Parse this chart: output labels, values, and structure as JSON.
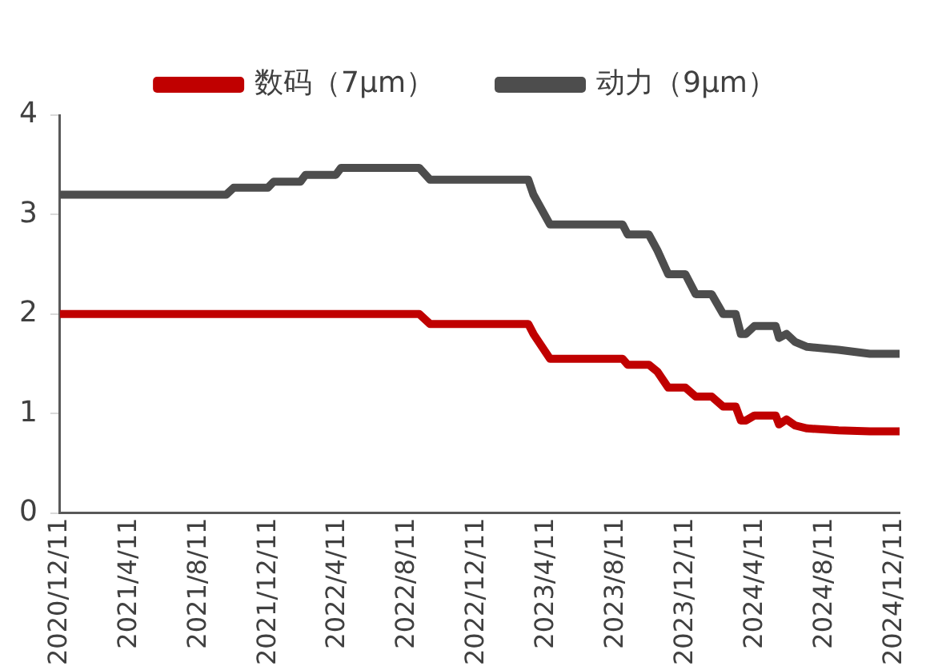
{
  "chart_data": {
    "type": "line",
    "legend": "top",
    "grid": false,
    "marker": "none",
    "line_style": "solid",
    "xlim": [
      "2020-12-11",
      "2024-12-20"
    ],
    "xticks": [
      {
        "value": "2020-12-11",
        "label": "2020/12/11"
      },
      {
        "value": "2021-04-11",
        "label": "2021/4/11"
      },
      {
        "value": "2021-08-11",
        "label": "2021/8/11"
      },
      {
        "value": "2021-12-11",
        "label": "2021/12/11"
      },
      {
        "value": "2022-04-11",
        "label": "2022/4/11"
      },
      {
        "value": "2022-08-11",
        "label": "2022/8/11"
      },
      {
        "value": "2022-12-11",
        "label": "2022/12/11"
      },
      {
        "value": "2023-04-11",
        "label": "2023/4/11"
      },
      {
        "value": "2023-08-11",
        "label": "2023/8/11"
      },
      {
        "value": "2023-12-11",
        "label": "2023/12/11"
      },
      {
        "value": "2024-04-11",
        "label": "2024/4/11"
      },
      {
        "value": "2024-08-11",
        "label": "2024/8/11"
      },
      {
        "value": "2024-12-11",
        "label": "2024/12/11"
      }
    ],
    "ylim": [
      0,
      4
    ],
    "yticks": [
      0,
      1,
      2,
      3,
      4
    ],
    "series": [
      {
        "name": "数码（7μm）",
        "color": "#c00000",
        "x": [
          "2020-12-11",
          "2022-09-01",
          "2022-09-20",
          "2023-03-11",
          "2023-03-20",
          "2023-04-18",
          "2023-08-23",
          "2023-09-01",
          "2023-10-08",
          "2023-10-23",
          "2023-11-11",
          "2023-12-11",
          "2023-12-29",
          "2024-01-26",
          "2024-02-15",
          "2024-03-08",
          "2024-03-17",
          "2024-03-26",
          "2024-04-10",
          "2024-05-17",
          "2024-05-23",
          "2024-06-05",
          "2024-06-20",
          "2024-07-11",
          "2024-09-04",
          "2024-10-29",
          "2024-12-20"
        ],
        "values": [
          2.0,
          2.0,
          1.9,
          1.9,
          1.8,
          1.55,
          1.55,
          1.49,
          1.49,
          1.42,
          1.26,
          1.26,
          1.17,
          1.17,
          1.07,
          1.07,
          0.93,
          0.93,
          0.98,
          0.98,
          0.89,
          0.94,
          0.88,
          0.85,
          0.83,
          0.82,
          0.82
        ]
      },
      {
        "name": "动力（9μm）",
        "color": "#4d4d4d",
        "x": [
          "2020-12-11",
          "2021-09-28",
          "2021-10-11",
          "2021-12-10",
          "2021-12-20",
          "2022-02-05",
          "2022-02-14",
          "2022-04-08",
          "2022-04-17",
          "2022-09-01",
          "2022-09-20",
          "2023-03-11",
          "2023-03-20",
          "2023-04-18",
          "2023-08-23",
          "2023-09-01",
          "2023-10-08",
          "2023-10-23",
          "2023-11-11",
          "2023-12-11",
          "2023-12-29",
          "2024-01-26",
          "2024-02-15",
          "2024-03-08",
          "2024-03-17",
          "2024-03-26",
          "2024-04-10",
          "2024-05-17",
          "2024-05-23",
          "2024-06-05",
          "2024-06-20",
          "2024-07-11",
          "2024-09-04",
          "2024-10-29",
          "2024-12-20"
        ],
        "values": [
          3.2,
          3.2,
          3.27,
          3.27,
          3.33,
          3.33,
          3.4,
          3.4,
          3.47,
          3.47,
          3.35,
          3.35,
          3.2,
          2.9,
          2.9,
          2.8,
          2.8,
          2.64,
          2.4,
          2.4,
          2.2,
          2.2,
          2.0,
          2.0,
          1.8,
          1.8,
          1.88,
          1.88,
          1.76,
          1.8,
          1.72,
          1.67,
          1.64,
          1.6,
          1.6
        ]
      }
    ]
  }
}
